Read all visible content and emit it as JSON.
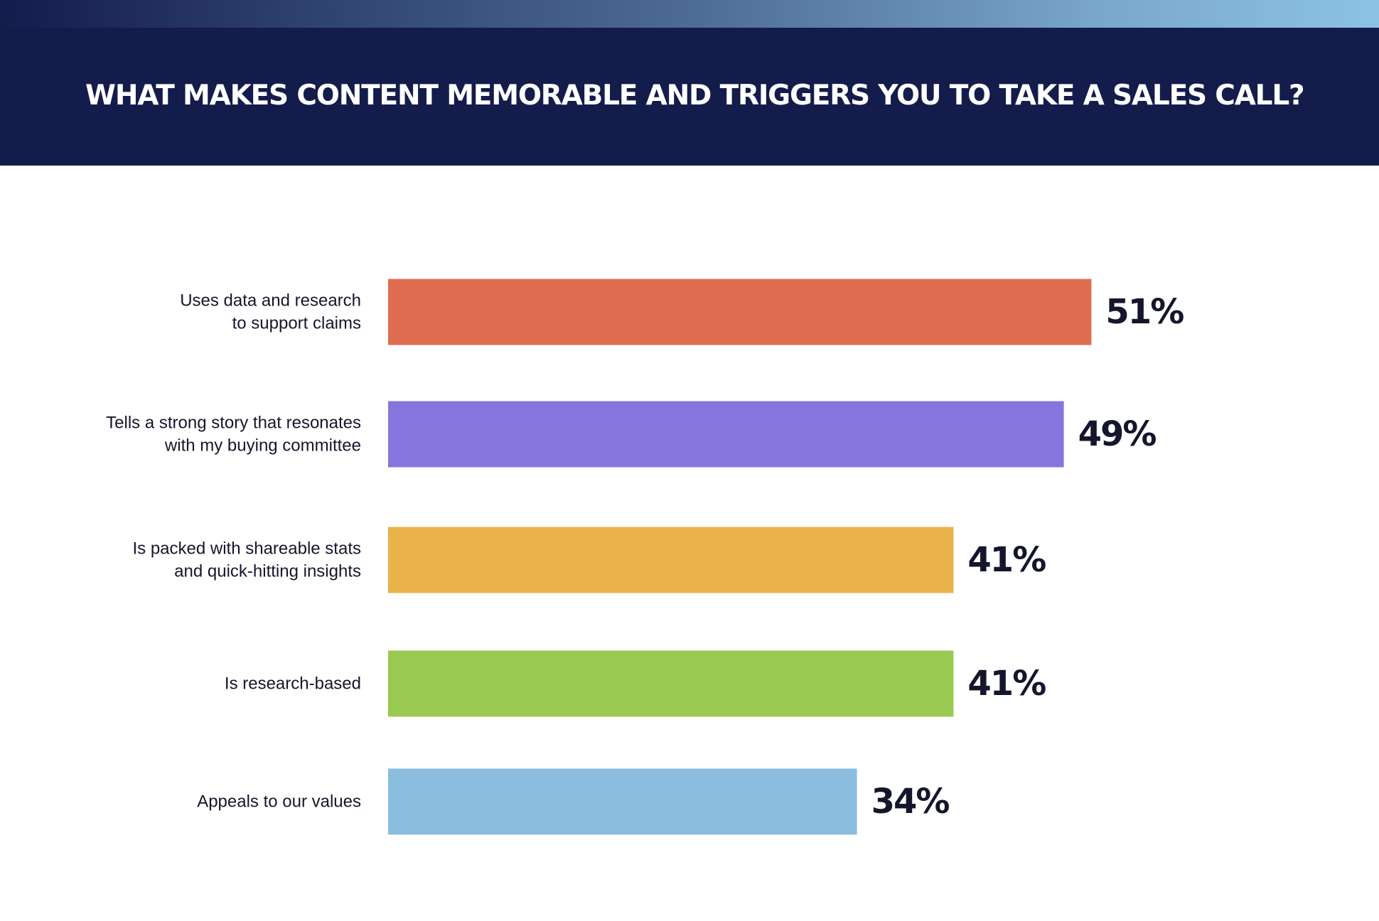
{
  "title": "WHAT MAKES CONTENT MEMORABLE AND TRIGGERS YOU TO TAKE A SALES CALL?",
  "colors": {
    "header_background": "#141c4c",
    "title_text": "#ffffff",
    "label_text": "#14172b"
  },
  "chart_data": {
    "type": "bar",
    "orientation": "horizontal",
    "title": "WHAT MAKES CONTENT MEMORABLE AND TRIGGERS YOU TO TAKE A SALES CALL?",
    "xlabel": "",
    "ylabel": "",
    "grid": false,
    "legend": "none",
    "categories": [
      [
        "Uses data and research",
        "to support claims"
      ],
      [
        "Tells a strong story that resonates",
        "with my buying committee"
      ],
      [
        "Is packed with shareable stats",
        "and quick-hitting insights"
      ],
      [
        "Is research-based"
      ],
      [
        "Appeals to our values"
      ]
    ],
    "values": [
      51,
      49,
      41,
      41,
      34
    ],
    "value_labels": [
      "51%",
      "49%",
      "41%",
      "41%",
      "34%"
    ],
    "bar_colors": [
      "#e06c52",
      "#8675dd",
      "#eab24b",
      "#99c950",
      "#8bbede"
    ]
  }
}
